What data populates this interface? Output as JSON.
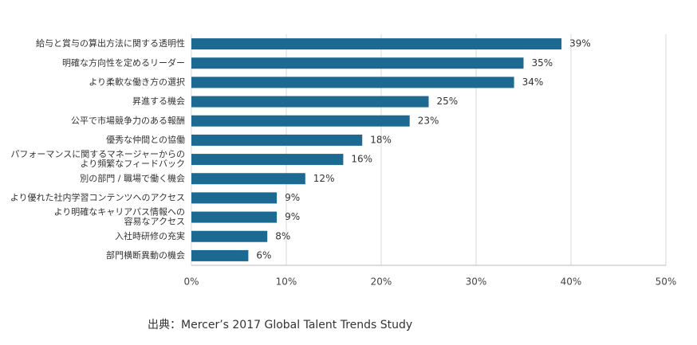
{
  "chart_data": {
    "type": "bar",
    "orientation": "horizontal",
    "categories": [
      "給与と賞与の算出方法に関する透明性",
      "明確な方向性を定めるリーダー",
      "より柔軟な働き方の選択",
      "昇進する機会",
      "公平で市場競争力のある報酬",
      "優秀な仲間との協働",
      "パフォーマンスに関するマネージャーからの\nより頻繁なフィードバック",
      "別の部門 / 職場で働く機会",
      "より優れた社内学習コンテンツへのアクセス",
      "より明確なキャリアパス情報への\n容易なアクセス",
      "入社時研修の充実",
      "部門横断異動の機会"
    ],
    "values": [
      39,
      35,
      34,
      25,
      23,
      18,
      16,
      12,
      9,
      9,
      8,
      6
    ],
    "value_labels": [
      "39%",
      "35%",
      "34%",
      "25%",
      "23%",
      "18%",
      "16%",
      "12%",
      "9%",
      "9%",
      "8%",
      "6%"
    ],
    "color": "#1c6992",
    "xlim": [
      0,
      50
    ],
    "xticks": [
      {
        "value": 0,
        "label": "0%"
      },
      {
        "value": 10,
        "label": "10%"
      },
      {
        "value": 20,
        "label": "20%"
      },
      {
        "value": 30,
        "label": "30%"
      },
      {
        "value": 40,
        "label": "40%"
      },
      {
        "value": 50,
        "label": "50%"
      }
    ],
    "grid": true,
    "source": "出典：Mercer’s 2017 Global Talent Trends Study"
  }
}
